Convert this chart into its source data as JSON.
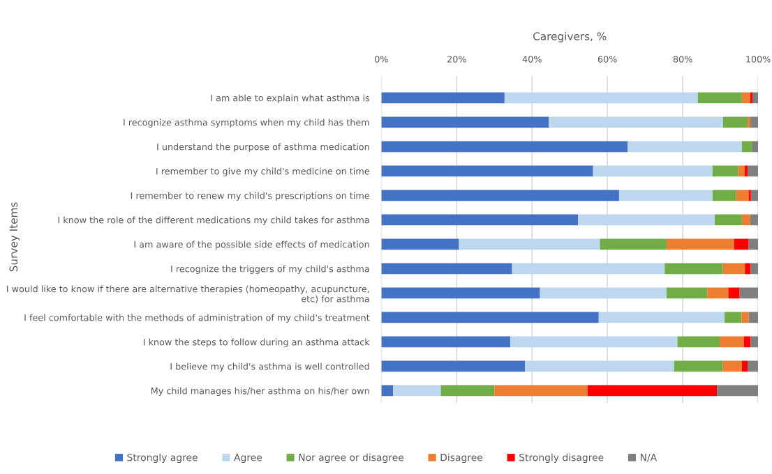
{
  "chart_data": {
    "type": "bar",
    "orientation": "horizontal",
    "stacked": true,
    "xlabel": "Caregivers, %",
    "ylabel": "Survey Items",
    "categories": [
      "I am able to explain what asthma is",
      "I recognize asthma symptoms when my child has them",
      "I understand the purpose of asthma medication",
      "I remember to give my child's medicine on time",
      "I remember to renew my child's prescriptions on time",
      "I know the role of the different medications my child takes for asthma",
      "I am aware of the possible side effects of medication",
      "I recognize the triggers of my child's asthma",
      "I would like to know if there are alternative therapies (homeopathy, acupuncture,\netc) for asthma",
      "I feel comfortable with the methods of administration of my child's treatment",
      "I know the steps to follow during an asthma attack",
      "I believe my child's asthma is well controlled",
      "My child manages his/her asthma on his/her own"
    ],
    "series": [
      {
        "name": "Strongly agree",
        "color": "#4472c4",
        "values": [
          32.7,
          44.4,
          65.4,
          56.2,
          63.1,
          52.2,
          20.6,
          34.7,
          42.1,
          57.7,
          34.2,
          38.1,
          3.1
        ]
      },
      {
        "name": "Agree",
        "color": "#bdd7ee",
        "values": [
          51.3,
          46.3,
          30.3,
          31.7,
          24.8,
          36.3,
          37.4,
          40.5,
          33.6,
          33.4,
          44.4,
          39.6,
          12.7
        ]
      },
      {
        "name": "Nor agree or disagree",
        "color": "#70ad47",
        "values": [
          11.7,
          6.5,
          2.8,
          6.8,
          6.3,
          7.2,
          17.7,
          15.4,
          10.8,
          4.5,
          11.2,
          12.9,
          14.2
        ]
      },
      {
        "name": "Disagree",
        "color": "#ed7d31",
        "values": [
          2.2,
          0.7,
          0,
          1.7,
          3.3,
          2.2,
          17.9,
          5.9,
          5.6,
          1.9,
          6.4,
          5.1,
          24.7
        ]
      },
      {
        "name": "Strongly disagree",
        "color": "#ff0000",
        "values": [
          0.6,
          0,
          0,
          0.8,
          0.6,
          0,
          3.9,
          1.5,
          3.0,
          0,
          1.8,
          1.5,
          34.4
        ]
      },
      {
        "name": "N/A",
        "color": "#7f7f7f",
        "values": [
          1.5,
          2.1,
          1.5,
          2.8,
          1.9,
          2.1,
          2.5,
          2.0,
          4.9,
          2.5,
          2.0,
          2.8,
          10.9
        ]
      }
    ],
    "xlim": [
      0,
      100
    ],
    "xticks": [
      {
        "value": 0,
        "label": "0%"
      },
      {
        "value": 20,
        "label": "20%"
      },
      {
        "value": 40,
        "label": "40%"
      },
      {
        "value": 60,
        "label": "60%"
      },
      {
        "value": 80,
        "label": "80%"
      },
      {
        "value": 100,
        "label": "100%"
      }
    ],
    "grid": "x",
    "legend": "bottom"
  }
}
